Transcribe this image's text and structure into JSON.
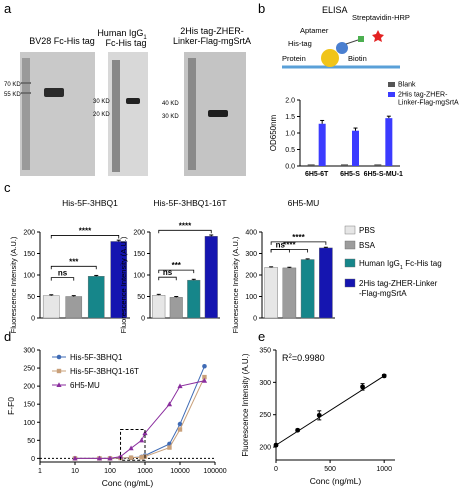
{
  "panel_letters": {
    "a": "a",
    "b": "b",
    "c": "c",
    "d": "d",
    "e": "e"
  },
  "gels": {
    "gel1": {
      "title": "BV28 Fc-His tag",
      "markers": [
        "70 KD",
        "55 KD"
      ]
    },
    "gel2": {
      "title_line1": "Human IgG",
      "title_sub": "1",
      "title_line2": "Fc-His tag",
      "markers": [
        "30 KD",
        "20 KD"
      ]
    },
    "gel3": {
      "title_line1": "2His tag-ZHER-",
      "title_line2": "Linker-Flag-mgSrtA",
      "markers": [
        "40 KD",
        "30 KD"
      ]
    }
  },
  "schematic": {
    "title": "ELISA",
    "labels": {
      "streptavidin": "Streptavidin-HRP",
      "aptamer": "Aptamer",
      "histag": "His-tag",
      "protein": "Protein",
      "biotin": "Biotin"
    }
  },
  "colors": {
    "blank": "#555555",
    "zher": "#3b3bff",
    "pbs": "#e6e6e6",
    "bsa": "#9c9c9c",
    "igg": "#16868a",
    "zher_c": "#1515b0",
    "d_s1": "#3f6bb5",
    "d_s2": "#c9a07a",
    "d_s3": "#8a2d9e"
  },
  "chart_data": [
    {
      "panel": "b",
      "type": "bar",
      "categories": [
        "6H5-6T",
        "6H5-S",
        "6H5-S-MU-1"
      ],
      "ylabel": "OD650nm",
      "ylim": [
        0,
        2.0
      ],
      "yticks": [
        "0.0",
        "0.5",
        "1.0",
        "1.5",
        "2.0"
      ],
      "legend_position": "top-right",
      "series": [
        {
          "name": "Blank",
          "values": [
            0.05,
            0.05,
            0.05
          ]
        },
        {
          "name": "2His tag-ZHER-\nLinker-Flag-mgSrtA",
          "values": [
            1.28,
            1.07,
            1.45
          ],
          "errors": [
            0.1,
            0.08,
            0.06
          ]
        }
      ]
    },
    {
      "panel": "c",
      "type": "bar",
      "subplots": [
        {
          "title": "His-5F-3HBQ1",
          "values": [
            52,
            50,
            97,
            178
          ],
          "errors": [
            2,
            2,
            2,
            3
          ],
          "significance": [
            {
              "label": "ns"
            },
            {
              "label": "***"
            },
            {
              "label": "****"
            }
          ]
        },
        {
          "title": "His-5F-3HBQ1-16T",
          "values": [
            53,
            48,
            88,
            190
          ],
          "errors": [
            2,
            2,
            2,
            3
          ],
          "significance": [
            {
              "label": "ns"
            },
            {
              "label": "***"
            },
            {
              "label": "****"
            }
          ]
        },
        {
          "title": "6H5-MU",
          "values": [
            235,
            233,
            272,
            326
          ],
          "errors": [
            3,
            3,
            3,
            3
          ],
          "significance": [
            {
              "label": "ns"
            },
            {
              "label": "****"
            },
            {
              "label": "****"
            }
          ]
        }
      ],
      "ylabel": "Fluorescence Intensity (A.U.)",
      "ylim": [
        0,
        200
      ],
      "ylim_right": [
        0,
        400
      ],
      "yticks": [
        "0",
        "50",
        "100",
        "150",
        "200"
      ],
      "yticks_right": [
        "0",
        "100",
        "200",
        "300",
        "400"
      ],
      "legend": [
        {
          "name": "PBS"
        },
        {
          "name": "BSA"
        },
        {
          "name": "Human IgG",
          "sub": "1",
          "suffix": " Fc-His tag"
        },
        {
          "name": "2His tag-ZHER-Linker",
          "line2": "-Flag-mgSrtA"
        }
      ]
    },
    {
      "panel": "d",
      "type": "line",
      "xlabel": "Conc (ng/mL)",
      "ylabel": "F-F0",
      "xscale": "log",
      "xlim": [
        1,
        100000
      ],
      "ylim": [
        -10,
        300
      ],
      "xticks": [
        "1",
        "10",
        "100",
        "1000",
        "10000",
        "100000"
      ],
      "yticks": [
        "0",
        "50",
        "100",
        "150",
        "200",
        "250",
        "300"
      ],
      "legend_position": "top-left",
      "x": [
        10,
        50,
        100,
        200,
        400,
        800,
        1000,
        5000,
        10000,
        50000
      ],
      "series": [
        {
          "name": "His-5F-3BHQ1",
          "values": [
            0,
            0,
            0,
            1,
            2,
            4,
            8,
            40,
            95,
            255
          ]
        },
        {
          "name": "His-5F-3BHQ1-16T",
          "values": [
            0,
            0,
            0,
            1,
            2,
            3,
            5,
            30,
            80,
            225
          ]
        },
        {
          "name": "6H5-MU",
          "values": [
            0,
            0,
            0,
            5,
            28,
            50,
            70,
            150,
            200,
            215
          ]
        }
      ],
      "annotation": "dashed box around 200–1000 ng/mL"
    },
    {
      "panel": "e",
      "type": "scatter",
      "xlabel": "Conc (ng/mL)",
      "ylabel": "Fluorescence Intensity (A.U.)",
      "xlim": [
        0,
        1100
      ],
      "ylim": [
        180,
        350
      ],
      "xticks": [
        "0",
        "500",
        "1000"
      ],
      "yticks": [
        "200",
        "250",
        "300",
        "350"
      ],
      "x": [
        0,
        200,
        400,
        800,
        1000
      ],
      "y": [
        203,
        226,
        249,
        293,
        310
      ],
      "errors": [
        2,
        2,
        7,
        5,
        2
      ],
      "annotation_prefix": "R",
      "annotation_sup": "2",
      "annotation_value": "=0.9980"
    }
  ]
}
